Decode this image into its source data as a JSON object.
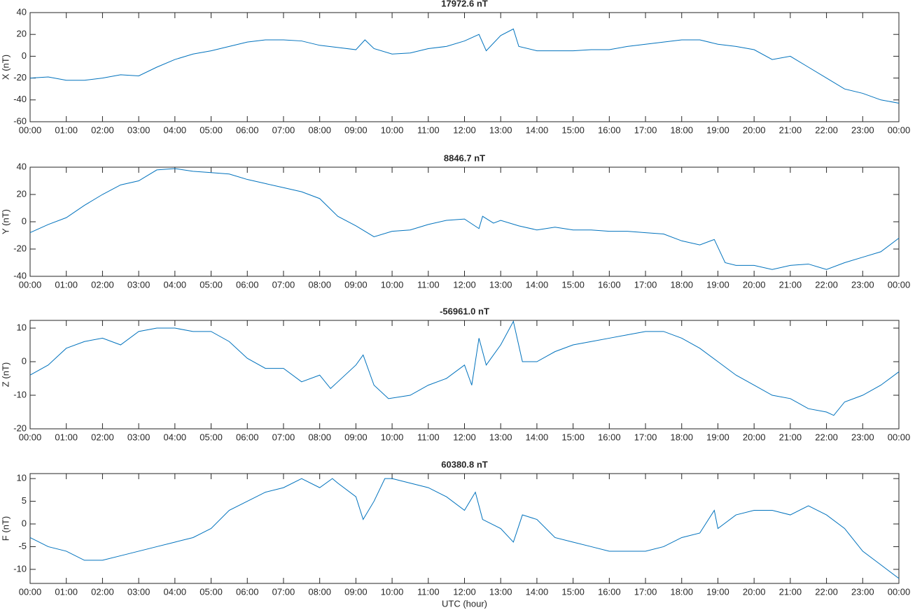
{
  "chart_data": [
    {
      "type": "line",
      "title": "17972.6 nT",
      "ylabel": "X (nT)",
      "x": [
        0,
        0.5,
        1,
        1.5,
        2,
        2.5,
        3,
        3.5,
        4,
        4.5,
        5,
        5.5,
        6,
        6.5,
        7,
        7.5,
        8,
        8.5,
        9,
        9.25,
        9.5,
        10,
        10.5,
        11,
        11.5,
        12,
        12.4,
        12.6,
        13,
        13.35,
        13.5,
        14,
        14.5,
        15,
        15.5,
        16,
        16.5,
        17,
        17.5,
        18,
        18.5,
        19,
        19.5,
        20,
        20.5,
        21,
        21.5,
        22,
        22.5,
        23,
        23.5,
        24
      ],
      "series": [
        {
          "name": "X",
          "color": "#0072bd",
          "values": [
            -20,
            -19,
            -22,
            -22,
            -20,
            -17,
            -18,
            -10,
            -3,
            2,
            5,
            9,
            13,
            15,
            15,
            14,
            10,
            8,
            6,
            15,
            7,
            2,
            3,
            7,
            9,
            14,
            20,
            5,
            19,
            25,
            9,
            5,
            5,
            5,
            6,
            6,
            9,
            11,
            13,
            15,
            15,
            11,
            9,
            6,
            -3,
            0,
            -10,
            -20,
            -30,
            -34,
            -40,
            -43
          ]
        }
      ],
      "xlim": [
        0,
        24
      ],
      "ylim": [
        -60,
        40
      ],
      "yticks": [
        -60,
        -40,
        -20,
        0,
        20,
        40
      ],
      "xticks": [
        {
          "value": 0,
          "label": "00:00"
        },
        {
          "value": 1,
          "label": "01:00"
        },
        {
          "value": 2,
          "label": "02:00"
        },
        {
          "value": 3,
          "label": "03:00"
        },
        {
          "value": 4,
          "label": "04:00"
        },
        {
          "value": 5,
          "label": "05:00"
        },
        {
          "value": 6,
          "label": "06:00"
        },
        {
          "value": 7,
          "label": "07:00"
        },
        {
          "value": 8,
          "label": "08:00"
        },
        {
          "value": 9,
          "label": "09:00"
        },
        {
          "value": 10,
          "label": "10:00"
        },
        {
          "value": 11,
          "label": "11:00"
        },
        {
          "value": 12,
          "label": "12:00"
        },
        {
          "value": 13,
          "label": "13:00"
        },
        {
          "value": 14,
          "label": "14:00"
        },
        {
          "value": 15,
          "label": "15:00"
        },
        {
          "value": 16,
          "label": "16:00"
        },
        {
          "value": 17,
          "label": "17:00"
        },
        {
          "value": 18,
          "label": "18:00"
        },
        {
          "value": 19,
          "label": "19:00"
        },
        {
          "value": 20,
          "label": "20:00"
        },
        {
          "value": 21,
          "label": "21:00"
        },
        {
          "value": 22,
          "label": "22:00"
        },
        {
          "value": 23,
          "label": "23:00"
        },
        {
          "value": 24,
          "label": "00:00"
        }
      ]
    },
    {
      "type": "line",
      "title": "8846.7 nT",
      "ylabel": "Y (nT)",
      "x": [
        0,
        0.5,
        1,
        1.5,
        2,
        2.5,
        3,
        3.5,
        4,
        4.5,
        5,
        5.5,
        6,
        6.5,
        7,
        7.5,
        8,
        8.5,
        9,
        9.5,
        10,
        10.5,
        11,
        11.5,
        12,
        12.4,
        12.5,
        12.8,
        13,
        13.5,
        14,
        14.5,
        15,
        15.5,
        16,
        16.5,
        17,
        17.5,
        18,
        18.5,
        18.9,
        19.2,
        19.5,
        20,
        20.5,
        21,
        21.5,
        22,
        22.5,
        23,
        23.5,
        24
      ],
      "series": [
        {
          "name": "Y",
          "color": "#0072bd",
          "values": [
            -8,
            -2,
            3,
            12,
            20,
            27,
            30,
            38,
            39,
            37,
            36,
            35,
            31,
            28,
            25,
            22,
            17,
            4,
            -3,
            -11,
            -7,
            -6,
            -2,
            1,
            2,
            -5,
            4,
            -1,
            1,
            -3,
            -6,
            -4,
            -6,
            -6,
            -7,
            -7,
            -8,
            -9,
            -14,
            -17,
            -13,
            -30,
            -32,
            -32,
            -35,
            -32,
            -31,
            -35,
            -30,
            -26,
            -22,
            -12
          ]
        }
      ],
      "xlim": [
        0,
        24
      ],
      "ylim": [
        -40,
        40
      ],
      "yticks": [
        -40,
        -20,
        0,
        20,
        40
      ],
      "xticks": [
        {
          "value": 0,
          "label": "00:00"
        },
        {
          "value": 1,
          "label": "01:00"
        },
        {
          "value": 2,
          "label": "02:00"
        },
        {
          "value": 3,
          "label": "03:00"
        },
        {
          "value": 4,
          "label": "04:00"
        },
        {
          "value": 5,
          "label": "05:00"
        },
        {
          "value": 6,
          "label": "06:00"
        },
        {
          "value": 7,
          "label": "07:00"
        },
        {
          "value": 8,
          "label": "08:00"
        },
        {
          "value": 9,
          "label": "09:00"
        },
        {
          "value": 10,
          "label": "10:00"
        },
        {
          "value": 11,
          "label": "11:00"
        },
        {
          "value": 12,
          "label": "12:00"
        },
        {
          "value": 13,
          "label": "13:00"
        },
        {
          "value": 14,
          "label": "14:00"
        },
        {
          "value": 15,
          "label": "15:00"
        },
        {
          "value": 16,
          "label": "16:00"
        },
        {
          "value": 17,
          "label": "17:00"
        },
        {
          "value": 18,
          "label": "18:00"
        },
        {
          "value": 19,
          "label": "19:00"
        },
        {
          "value": 20,
          "label": "20:00"
        },
        {
          "value": 21,
          "label": "21:00"
        },
        {
          "value": 22,
          "label": "22:00"
        },
        {
          "value": 23,
          "label": "23:00"
        },
        {
          "value": 24,
          "label": "00:00"
        }
      ]
    },
    {
      "type": "line",
      "title": "-56961.0 nT",
      "ylabel": "Z (nT)",
      "x": [
        0,
        0.5,
        1,
        1.5,
        2,
        2.5,
        3,
        3.5,
        4,
        4.5,
        5,
        5.5,
        6,
        6.5,
        7,
        7.5,
        8,
        8.3,
        8.5,
        9,
        9.2,
        9.5,
        9.9,
        10.5,
        11,
        11.5,
        12,
        12.2,
        12.4,
        12.6,
        13,
        13.35,
        13.6,
        14,
        14.5,
        15,
        15.5,
        16,
        16.5,
        17,
        17.5,
        18,
        18.5,
        19,
        19.5,
        20,
        20.5,
        21,
        21.5,
        22,
        22.2,
        22.5,
        23,
        23.5,
        24
      ],
      "series": [
        {
          "name": "Z",
          "color": "#0072bd",
          "values": [
            -4,
            -1,
            4,
            6,
            7,
            5,
            9,
            10,
            10,
            9,
            9,
            6,
            1,
            -2,
            -2,
            -6,
            -4,
            -8,
            -6,
            -1,
            2,
            -7,
            -11,
            -10,
            -7,
            -5,
            -1,
            -7,
            7,
            -1,
            5,
            12,
            0,
            0,
            3,
            5,
            6,
            7,
            8,
            9,
            9,
            7,
            4,
            0,
            -4,
            -7,
            -10,
            -11,
            -14,
            -15,
            -16,
            -12,
            -10,
            -7,
            -3
          ]
        }
      ],
      "xlim": [
        0,
        24
      ],
      "ylim": [
        -20,
        12.3
      ],
      "yticks": [
        -20,
        -10,
        0,
        10
      ],
      "xticks": [
        {
          "value": 0,
          "label": "00:00"
        },
        {
          "value": 1,
          "label": "01:00"
        },
        {
          "value": 2,
          "label": "02:00"
        },
        {
          "value": 3,
          "label": "03:00"
        },
        {
          "value": 4,
          "label": "04:00"
        },
        {
          "value": 5,
          "label": "05:00"
        },
        {
          "value": 6,
          "label": "06:00"
        },
        {
          "value": 7,
          "label": "07:00"
        },
        {
          "value": 8,
          "label": "08:00"
        },
        {
          "value": 9,
          "label": "09:00"
        },
        {
          "value": 10,
          "label": "10:00"
        },
        {
          "value": 11,
          "label": "11:00"
        },
        {
          "value": 12,
          "label": "12:00"
        },
        {
          "value": 13,
          "label": "13:00"
        },
        {
          "value": 14,
          "label": "14:00"
        },
        {
          "value": 15,
          "label": "15:00"
        },
        {
          "value": 16,
          "label": "16:00"
        },
        {
          "value": 17,
          "label": "17:00"
        },
        {
          "value": 18,
          "label": "18:00"
        },
        {
          "value": 19,
          "label": "19:00"
        },
        {
          "value": 20,
          "label": "20:00"
        },
        {
          "value": 21,
          "label": "21:00"
        },
        {
          "value": 22,
          "label": "22:00"
        },
        {
          "value": 23,
          "label": "23:00"
        },
        {
          "value": 24,
          "label": "00:00"
        }
      ]
    },
    {
      "type": "line",
      "title": "60380.8 nT",
      "ylabel": "F (nT)",
      "xlabel": "UTC (hour)",
      "x": [
        0,
        0.5,
        1,
        1.5,
        2,
        2.5,
        3,
        3.5,
        4,
        4.5,
        5,
        5.5,
        6,
        6.5,
        7,
        7.5,
        8,
        8.35,
        8.5,
        9,
        9.2,
        9.5,
        9.8,
        10,
        10.5,
        11,
        11.5,
        12,
        12.3,
        12.5,
        13,
        13.35,
        13.6,
        14,
        14.5,
        15,
        15.5,
        16,
        16.5,
        17,
        17.5,
        18,
        18.5,
        18.9,
        19,
        19.5,
        20,
        20.5,
        21,
        21.5,
        22,
        22.5,
        23,
        23.5,
        24
      ],
      "series": [
        {
          "name": "F",
          "color": "#0072bd",
          "values": [
            -3,
            -5,
            -6,
            -8,
            -8,
            -7,
            -6,
            -5,
            -4,
            -3,
            -1,
            3,
            5,
            7,
            8,
            10,
            8,
            10,
            9,
            6,
            1,
            5,
            10,
            10,
            9,
            8,
            6,
            3,
            7,
            1,
            -1,
            -4,
            2,
            1,
            -3,
            -4,
            -5,
            -6,
            -6,
            -6,
            -5,
            -3,
            -2,
            3,
            -1,
            2,
            3,
            3,
            2,
            4,
            2,
            -1,
            -6,
            -9,
            -12
          ]
        }
      ],
      "xlim": [
        0,
        24
      ],
      "ylim": [
        -13.1,
        11.1
      ],
      "yticks": [
        -10,
        -5,
        0,
        5,
        10
      ],
      "xticks": [
        {
          "value": 0,
          "label": "00:00"
        },
        {
          "value": 1,
          "label": "01:00"
        },
        {
          "value": 2,
          "label": "02:00"
        },
        {
          "value": 3,
          "label": "03:00"
        },
        {
          "value": 4,
          "label": "04:00"
        },
        {
          "value": 5,
          "label": "05:00"
        },
        {
          "value": 6,
          "label": "06:00"
        },
        {
          "value": 7,
          "label": "07:00"
        },
        {
          "value": 8,
          "label": "08:00"
        },
        {
          "value": 9,
          "label": "09:00"
        },
        {
          "value": 10,
          "label": "10:00"
        },
        {
          "value": 11,
          "label": "11:00"
        },
        {
          "value": 12,
          "label": "12:00"
        },
        {
          "value": 13,
          "label": "13:00"
        },
        {
          "value": 14,
          "label": "14:00"
        },
        {
          "value": 15,
          "label": "15:00"
        },
        {
          "value": 16,
          "label": "16:00"
        },
        {
          "value": 17,
          "label": "17:00"
        },
        {
          "value": 18,
          "label": "18:00"
        },
        {
          "value": 19,
          "label": "19:00"
        },
        {
          "value": 20,
          "label": "20:00"
        },
        {
          "value": 21,
          "label": "21:00"
        },
        {
          "value": 22,
          "label": "22:00"
        },
        {
          "value": 23,
          "label": "23:00"
        },
        {
          "value": 24,
          "label": "00:00"
        }
      ]
    }
  ]
}
